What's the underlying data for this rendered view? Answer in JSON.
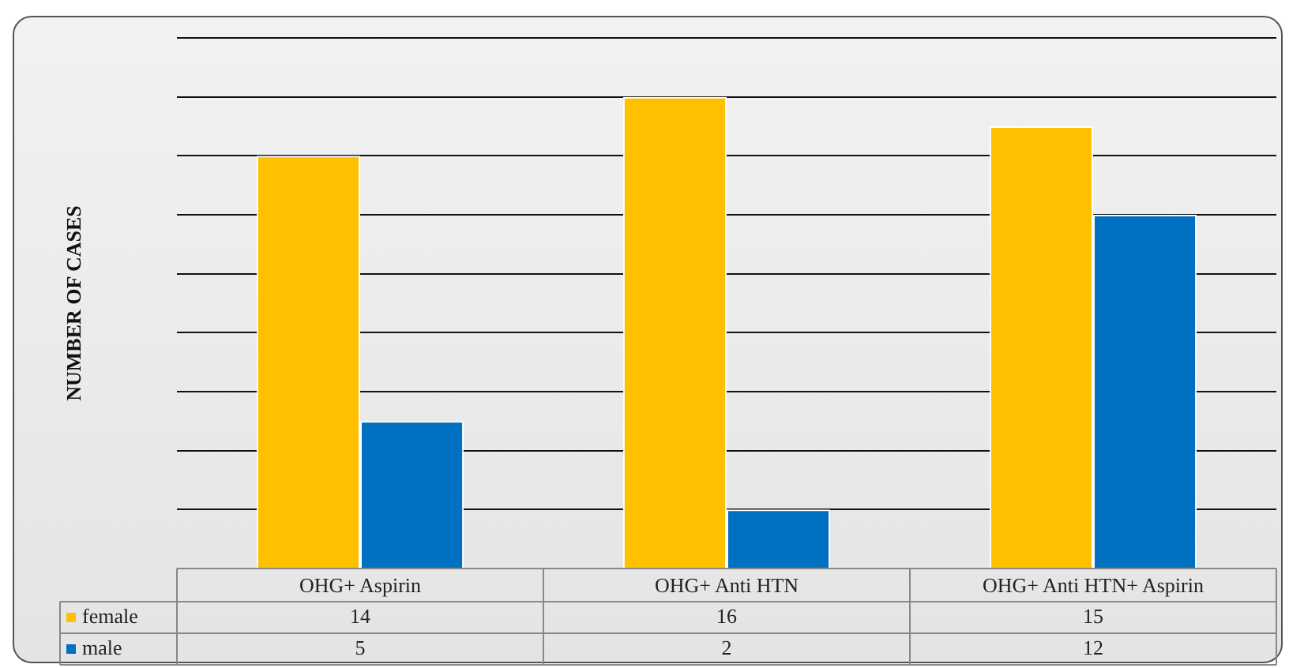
{
  "chart_data": {
    "type": "bar",
    "ylabel": "NUMBER OF CASES",
    "categories": [
      "OHG+ Aspirin",
      "OHG+ Anti HTN",
      "OHG+ Anti HTN+ Aspirin"
    ],
    "series": [
      {
        "name": "female",
        "color": "#ffc000",
        "values": [
          14,
          16,
          15
        ]
      },
      {
        "name": "male",
        "color": "#0070c0",
        "values": [
          5,
          2,
          12
        ]
      }
    ],
    "ylim": [
      0,
      18
    ],
    "yticks": [
      {
        "value": 0,
        "label": null
      },
      {
        "value": 2,
        "label": null
      },
      {
        "value": 4,
        "label": null
      },
      {
        "value": 6,
        "label": null
      },
      {
        "value": 8,
        "label": null
      },
      {
        "value": 10,
        "label": null
      },
      {
        "value": 12,
        "label": null
      },
      {
        "value": 14,
        "label": null
      },
      {
        "value": 16,
        "label": null
      },
      {
        "value": 18,
        "label": null
      }
    ],
    "grid": "y",
    "tick_labels": "x",
    "legend": "bottom",
    "data_labels": true
  }
}
